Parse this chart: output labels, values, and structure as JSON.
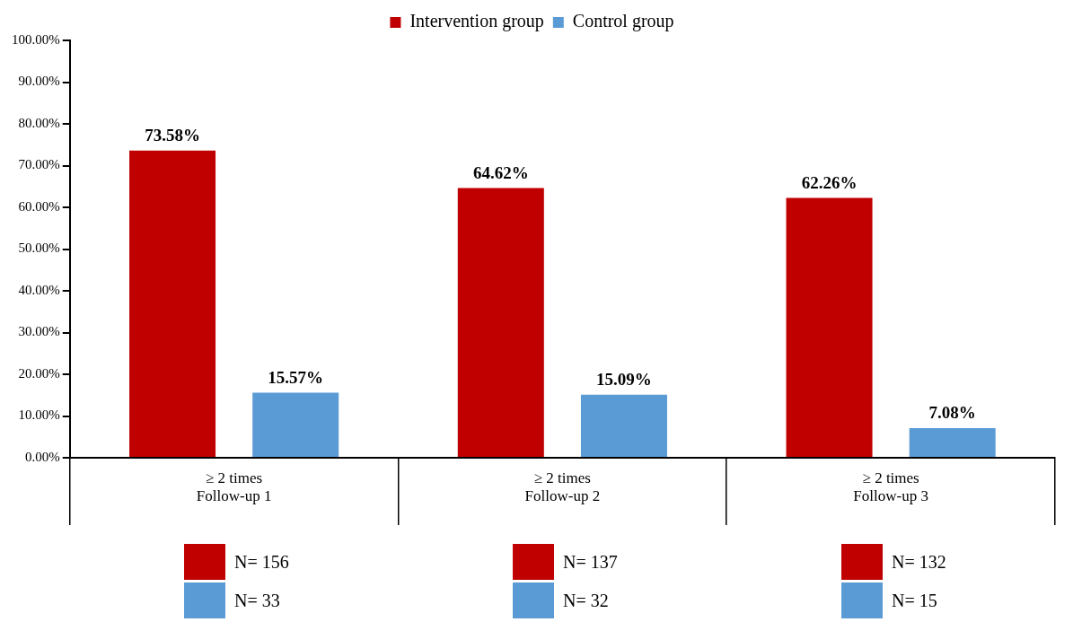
{
  "chart_data": {
    "type": "bar",
    "categories": [
      "≥ 2 times\nFollow-up 1",
      "≥ 2 times\nFollow-up 2",
      "≥ 2 times\nFollow-up 3"
    ],
    "series": [
      {
        "name": "Intervention group",
        "color": "#c00000",
        "values": [
          73.58,
          64.62,
          62.26
        ],
        "value_labels": [
          "73.58%",
          "64.62%",
          "62.26%"
        ]
      },
      {
        "name": "Control group",
        "color": "#5b9bd5",
        "values": [
          15.57,
          15.09,
          7.08
        ],
        "value_labels": [
          "15.57%",
          "15.09%",
          "7.08%"
        ]
      }
    ],
    "ylim": [
      0,
      100
    ],
    "yticks": [
      {
        "value": 0,
        "label": "0.00%"
      },
      {
        "value": 10,
        "label": "10.00%"
      },
      {
        "value": 20,
        "label": "20.00%"
      },
      {
        "value": 30,
        "label": "30.00%"
      },
      {
        "value": 40,
        "label": "40.00%"
      },
      {
        "value": 50,
        "label": "50.00%"
      },
      {
        "value": 60,
        "label": "60.00%"
      },
      {
        "value": 70,
        "label": "70.00%"
      },
      {
        "value": 80,
        "label": "80.00%"
      },
      {
        "value": 90,
        "label": "90.00%"
      },
      {
        "value": 100,
        "label": "100.00%"
      }
    ],
    "grid": false,
    "legend": "top",
    "annotations": [
      "N= 156",
      "N= 33",
      "N= 137",
      "N= 32",
      "N= 132",
      "N= 15"
    ]
  }
}
